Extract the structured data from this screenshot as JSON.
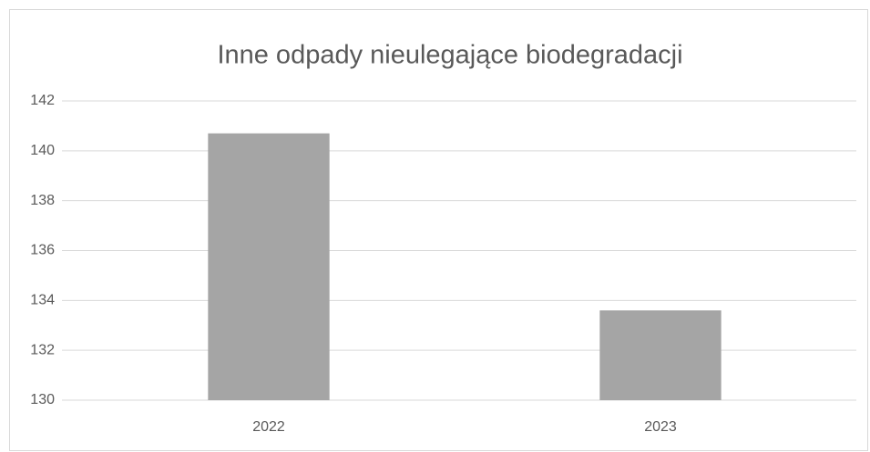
{
  "chart_data": {
    "type": "bar",
    "title": "Inne odpady nieulegające biodegradacji",
    "categories": [
      "2022",
      "2023"
    ],
    "values": [
      140.7,
      133.6
    ],
    "color": "#a5a5a5",
    "ylim": [
      130,
      142
    ],
    "yticks": [
      130,
      132,
      134,
      136,
      138,
      140,
      142
    ],
    "grid": true
  }
}
